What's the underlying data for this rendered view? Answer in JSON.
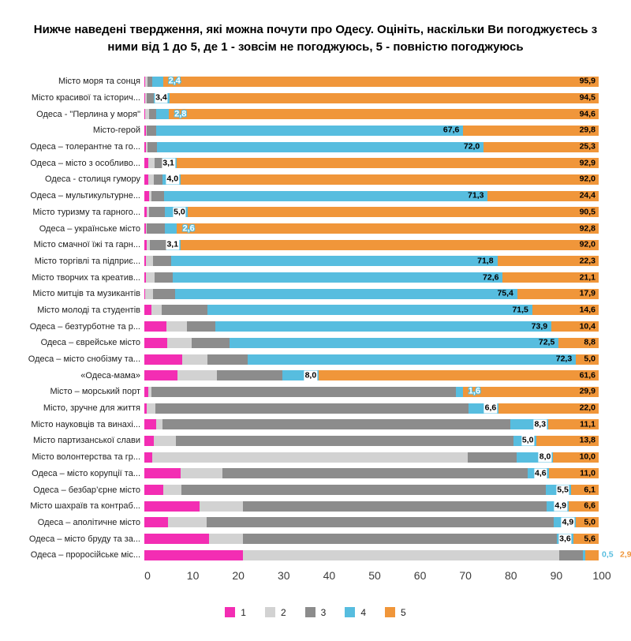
{
  "chart_data": {
    "type": "bar",
    "orientation": "horizontal-stacked",
    "title": "Нижче наведені твердження, які можна почути про Одесу. Оцініть, наскільки Ви погоджуєтесь з ними від 1 до 5, де 1 - зовсім не погоджуюсь, 5 - повністю погоджуюсь",
    "xlim": [
      0,
      100
    ],
    "xticks": [
      0,
      10,
      20,
      30,
      40,
      50,
      60,
      70,
      80,
      90,
      100
    ],
    "grid": false,
    "legend": {
      "position": "bottom",
      "entries": [
        "1",
        "2",
        "3",
        "4",
        "5"
      ]
    },
    "colors": {
      "s1": "#F32DB3",
      "s2": "#D2D2D2",
      "s3": "#8C8C8C",
      "s4": "#57BDDF",
      "s5": "#F0963A"
    },
    "categories": [
      "Місто моря та сонця",
      "Місто красивої та історич...",
      "Одеса - \"Перлина у моря\"",
      "Місто-герой",
      "Одеса – толерантне та го...",
      "Одеса – місто з особливо...",
      "Одеса - столиця гумору",
      "Одеса – мультикультурне...",
      "Місто туризму та гарного...",
      "Одеса – українське місто",
      "Місто смачної їжі та гарн...",
      "Місто торгівлі та підприє...",
      "Місто творчих та креатив...",
      "Місто митців та музикантів",
      "Місто молоді та студентів",
      "Одеса – безтурботне та р...",
      "Одеса – єврейське місто",
      "Одеса – місто снобізму та...",
      "«Одеса-мама»",
      "Місто – морський порт",
      "Місто, зручне для життя",
      "Місто науковців та винахі...",
      "Місто партизанської слави",
      "Місто волонтерства та гр...",
      "Одеса – місто корупції та...",
      "Одеса – безбар’єрне місто",
      "Місто шахраїв та контраб...",
      "Одеса – аполітичне місто",
      "Одеса – місто бруду та за...",
      "Одеса – проросійське міс..."
    ],
    "series": [
      {
        "name": "1",
        "values": [
          0.2,
          0.1,
          0.1,
          0.4,
          0.4,
          0.9,
          0.9,
          1.1,
          0.5,
          0.4,
          0.6,
          0.4,
          0.4,
          0.2,
          1.6,
          4.8,
          5.0,
          8.3,
          7.3,
          0.9,
          0.6,
          2.6,
          2.1,
          1.7,
          7.9,
          4.1,
          12.1,
          5.2,
          14.3,
          21.7
        ]
      },
      {
        "name": "2",
        "values": [
          0.5,
          0.5,
          1.0,
          0.2,
          0.3,
          1.3,
          1.2,
          0.4,
          0.6,
          0.2,
          0.7,
          1.5,
          1.8,
          1.7,
          2.3,
          4.6,
          5.4,
          5.6,
          8.7,
          0.6,
          1.8,
          1.4,
          4.8,
          69.5,
          9.3,
          4.1,
          9.6,
          8.5,
          7.4,
          69.6
        ]
      },
      {
        "name": "3",
        "values": [
          1.0,
          1.5,
          1.5,
          2.0,
          2.0,
          1.8,
          1.9,
          2.8,
          3.4,
          4.0,
          3.6,
          4.0,
          4.1,
          4.8,
          10.0,
          6.3,
          8.3,
          8.8,
          14.4,
          67.0,
          69.0,
          76.6,
          74.3,
          10.8,
          67.2,
          80.2,
          66.8,
          76.4,
          69.1,
          5.3
        ]
      },
      {
        "name": "4",
        "values": [
          2.4,
          3.4,
          2.8,
          67.6,
          72.0,
          3.1,
          4.0,
          71.3,
          5.0,
          2.6,
          3.1,
          71.8,
          72.6,
          75.4,
          71.5,
          73.9,
          72.5,
          72.3,
          8.0,
          1.6,
          6.6,
          8.3,
          5.0,
          8.0,
          4.6,
          5.5,
          4.9,
          4.9,
          3.6,
          0.5
        ]
      },
      {
        "name": "5",
        "values": [
          95.9,
          94.5,
          94.6,
          29.8,
          25.3,
          92.9,
          92.0,
          24.4,
          90.5,
          92.8,
          92.0,
          22.3,
          21.1,
          17.9,
          14.6,
          10.4,
          8.8,
          5.0,
          61.6,
          29.9,
          22.0,
          11.1,
          13.8,
          10.0,
          11.0,
          6.1,
          6.6,
          5.0,
          5.6,
          2.9
        ]
      }
    ],
    "value_labels": [
      {
        "v4": "2,4",
        "v4_style": "outlined",
        "v5": "95,9",
        "v5_style": "inside"
      },
      {
        "v4": "3,4",
        "v4_style": "aura",
        "v5": "94,5",
        "v5_style": "inside"
      },
      {
        "v4": "2,8",
        "v4_style": "outlined",
        "v5": "94,6",
        "v5_style": "inside"
      },
      {
        "v4": "67,6",
        "v4_style": "inside",
        "v5": "29,8",
        "v5_style": "inside"
      },
      {
        "v4": "72,0",
        "v4_style": "inside",
        "v5": "25,3",
        "v5_style": "inside"
      },
      {
        "v4": "3,1",
        "v4_style": "aura",
        "v5": "92,9",
        "v5_style": "inside"
      },
      {
        "v4": "4,0",
        "v4_style": "aura",
        "v5": "92,0",
        "v5_style": "inside"
      },
      {
        "v4": "71,3",
        "v4_style": "inside",
        "v5": "24,4",
        "v5_style": "inside"
      },
      {
        "v4": "5,0",
        "v4_style": "aura",
        "v5": "90,5",
        "v5_style": "inside"
      },
      {
        "v4": "2,6",
        "v4_style": "outlined",
        "v5": "92,8",
        "v5_style": "inside"
      },
      {
        "v4": "3,1",
        "v4_style": "aura",
        "v5": "92,0",
        "v5_style": "inside"
      },
      {
        "v4": "71,8",
        "v4_style": "inside",
        "v5": "22,3",
        "v5_style": "inside"
      },
      {
        "v4": "72,6",
        "v4_style": "inside",
        "v5": "21,1",
        "v5_style": "inside"
      },
      {
        "v4": "75,4",
        "v4_style": "inside",
        "v5": "17,9",
        "v5_style": "inside"
      },
      {
        "v4": "71,5",
        "v4_style": "inside",
        "v5": "14,6",
        "v5_style": "inside"
      },
      {
        "v4": "73,9",
        "v4_style": "inside",
        "v5": "10,4",
        "v5_style": "inside"
      },
      {
        "v4": "72,5",
        "v4_style": "inside",
        "v5": "8,8",
        "v5_style": "inside"
      },
      {
        "v4": "72,3",
        "v4_style": "inside",
        "v5": "5,0",
        "v5_style": "inside"
      },
      {
        "v4": "8,0",
        "v4_style": "aura",
        "v5": "61,6",
        "v5_style": "inside"
      },
      {
        "v4": "1,6",
        "v4_style": "outlined",
        "v5": "29,9",
        "v5_style": "inside"
      },
      {
        "v4": "6,6",
        "v4_style": "aura",
        "v5": "22,0",
        "v5_style": "inside"
      },
      {
        "v4": "8,3",
        "v4_style": "aura",
        "v5": "11,1",
        "v5_style": "inside"
      },
      {
        "v4": "5,0",
        "v4_style": "aura",
        "v5": "13,8",
        "v5_style": "inside"
      },
      {
        "v4": "8,0",
        "v4_style": "aura",
        "v5": "10,0",
        "v5_style": "inside"
      },
      {
        "v4": "4,6",
        "v4_style": "aura",
        "v5": "11,0",
        "v5_style": "inside"
      },
      {
        "v4": "5,5",
        "v4_style": "aura",
        "v5": "6,1",
        "v5_style": "inside"
      },
      {
        "v4": "4,9",
        "v4_style": "aura",
        "v5": "6,6",
        "v5_style": "inside"
      },
      {
        "v4": "4,9",
        "v4_style": "aura",
        "v5": "5,0",
        "v5_style": "inside"
      },
      {
        "v4": "3,6",
        "v4_style": "aura",
        "v5": "5,6",
        "v5_style": "inside"
      },
      {
        "v4": "0,5",
        "v4_style": "outside-end",
        "v5": "2,9",
        "v5_style": "outside-end"
      }
    ]
  }
}
